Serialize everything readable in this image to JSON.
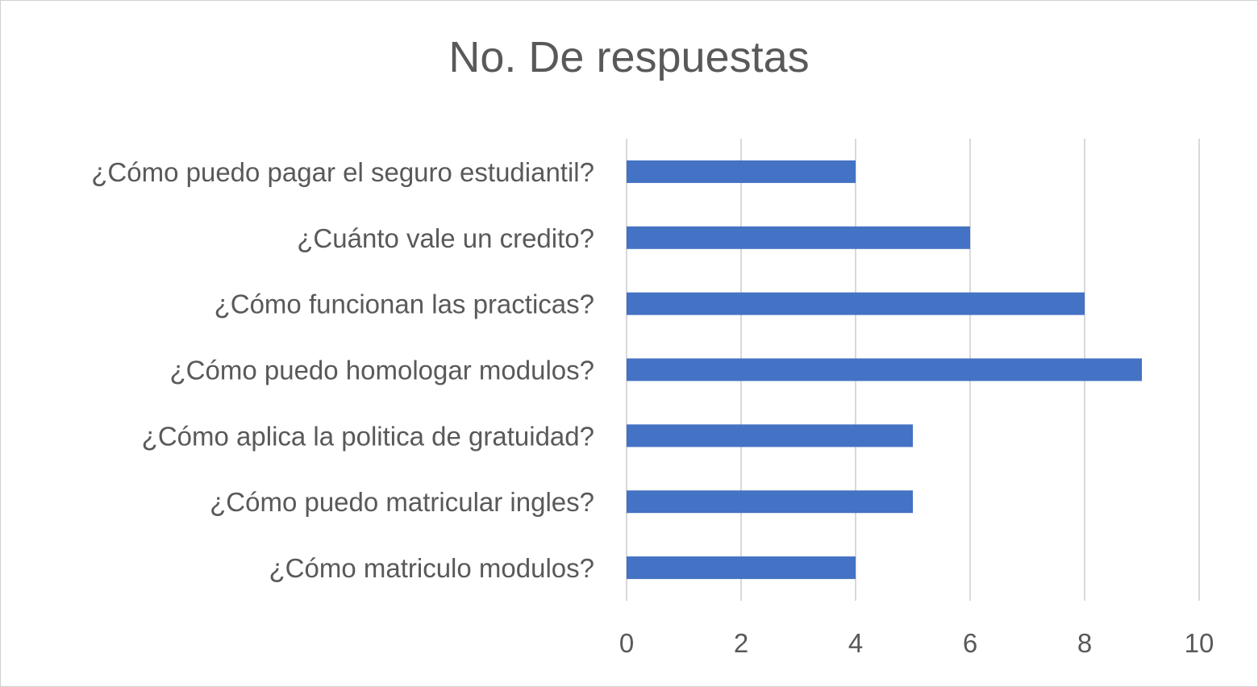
{
  "chart_data": {
    "type": "bar",
    "orientation": "horizontal",
    "title": "No. De respuestas",
    "categories": [
      "¿Cómo puedo pagar el seguro estudiantil?",
      "¿Cuánto vale un credito?",
      "¿Cómo funcionan las practicas?",
      "¿Cómo puedo homologar modulos?",
      "¿Cómo aplica la politica de gratuidad?",
      "¿Cómo puedo matricular ingles?",
      "¿Cómo matriculo modulos?"
    ],
    "values": [
      4,
      6,
      8,
      9,
      5,
      5,
      4
    ],
    "xlim": [
      0,
      10
    ],
    "xticks": [
      "0",
      "2",
      "4",
      "6",
      "8",
      "10"
    ],
    "grid": true,
    "legend": "none",
    "colors": {
      "bar": "#4472C4",
      "grid": "#d9d9d9",
      "text": "#595959"
    }
  }
}
